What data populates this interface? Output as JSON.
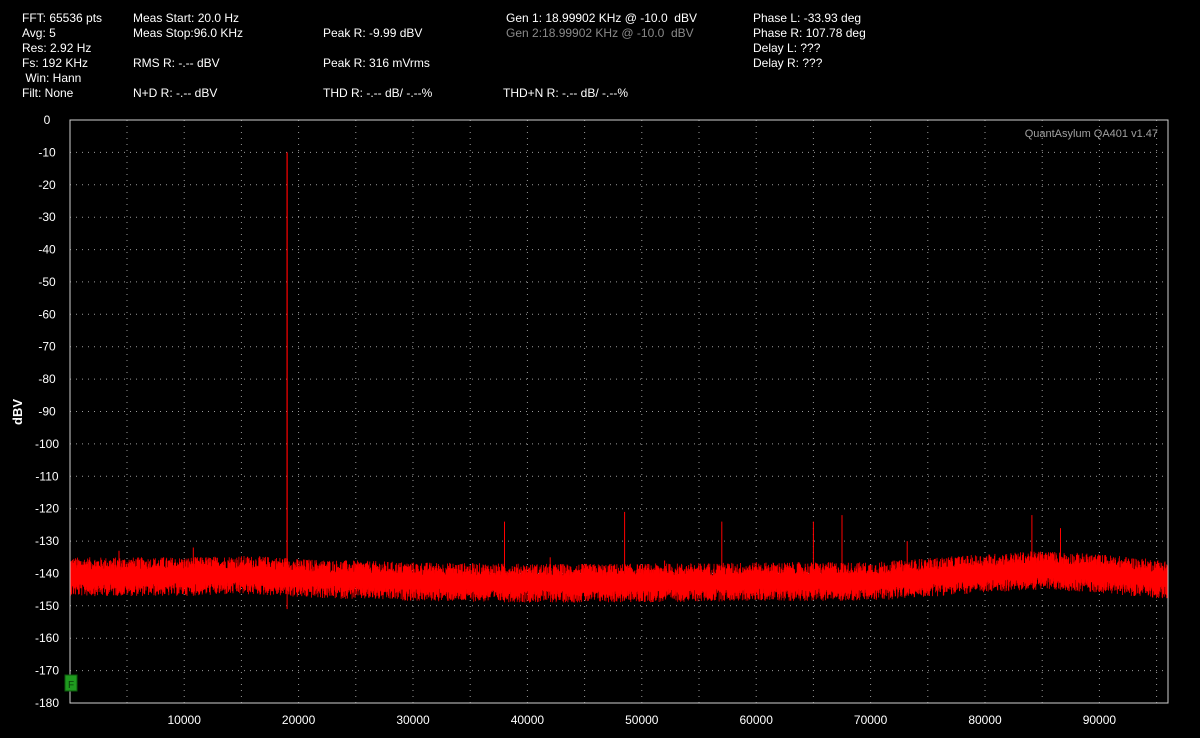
{
  "readouts": {
    "col1": [
      "FFT: 65536 pts",
      "Avg: 5",
      "Res: 2.92 Hz",
      "Fs: 192 KHz",
      " Win: Hann",
      "Filt: None"
    ],
    "meas_start": "Meas Start: 20.0 Hz",
    "meas_stop": "Meas Stop:96.0 KHz",
    "rms_r": "RMS R: -.-- dBV",
    "nd_r": "N+D R: -.-- dBV",
    "peak_r_db": "Peak R: -9.99 dBV",
    "peak_r_mv": "Peak R: 316 mVrms",
    "thd_r": "THD R: -.-- dB/ -.--%",
    "gen1": "Gen 1: 18.99902 KHz @ -10.0  dBV",
    "gen2": "Gen 2:18.99902 KHz @ -10.0  dBV",
    "thdn_r": "THD+N R: -.-- dB/ -.--%",
    "phase_l": "Phase L: -33.93 deg",
    "phase_r": "Phase R: 107.78 deg",
    "delay_l": "Delay L: ???",
    "delay_r": "Delay R: ???"
  },
  "watermark": "QuantAsylum QA401 v1.47",
  "marker_label": "F",
  "colors": {
    "background": "#000000",
    "trace": "#ff0000",
    "grid": "#9a9a9a",
    "frame": "#d0d0d0",
    "text": "#ffffff",
    "gen2_text": "#8a8a8a",
    "watermark": "#a0a0a0",
    "marker": "#1f9a1f"
  },
  "chart_data": {
    "type": "line",
    "title": "",
    "xlabel": "",
    "ylabel": "dBV",
    "xlim": [
      20,
      96000
    ],
    "ylim": [
      -180,
      0
    ],
    "x_ticks": [
      10000,
      20000,
      30000,
      40000,
      50000,
      60000,
      70000,
      80000,
      90000
    ],
    "y_ticks": [
      0,
      -10,
      -20,
      -30,
      -40,
      -50,
      -60,
      -70,
      -80,
      -90,
      -100,
      -110,
      -120,
      -130,
      -140,
      -150,
      -160,
      -170,
      -180
    ],
    "grid": true,
    "series": [
      {
        "noise_floor": [
          [
            20,
            -141
          ],
          [
            5000,
            -141
          ],
          [
            10000,
            -141
          ],
          [
            15000,
            -140.5
          ],
          [
            19000,
            -141
          ],
          [
            20000,
            -141.5
          ],
          [
            30000,
            -142.5
          ],
          [
            40000,
            -143
          ],
          [
            50000,
            -143
          ],
          [
            60000,
            -142.5
          ],
          [
            70000,
            -142.5
          ],
          [
            80000,
            -140
          ],
          [
            85000,
            -139
          ],
          [
            90000,
            -140
          ],
          [
            96000,
            -142
          ]
        ],
        "peaks": [
          {
            "x": 4300,
            "y": -133
          },
          {
            "x": 8200,
            "y": -135
          },
          {
            "x": 10800,
            "y": -132
          },
          {
            "x": 19000,
            "y": -10.0
          },
          {
            "x": 38000,
            "y": -124
          },
          {
            "x": 42000,
            "y": -135
          },
          {
            "x": 48500,
            "y": -121
          },
          {
            "x": 52000,
            "y": -136
          },
          {
            "x": 57000,
            "y": -124
          },
          {
            "x": 65000,
            "y": -124
          },
          {
            "x": 67500,
            "y": -122
          },
          {
            "x": 73200,
            "y": -130
          },
          {
            "x": 78000,
            "y": -135
          },
          {
            "x": 84100,
            "y": -122
          },
          {
            "x": 86600,
            "y": -126
          }
        ]
      }
    ]
  }
}
